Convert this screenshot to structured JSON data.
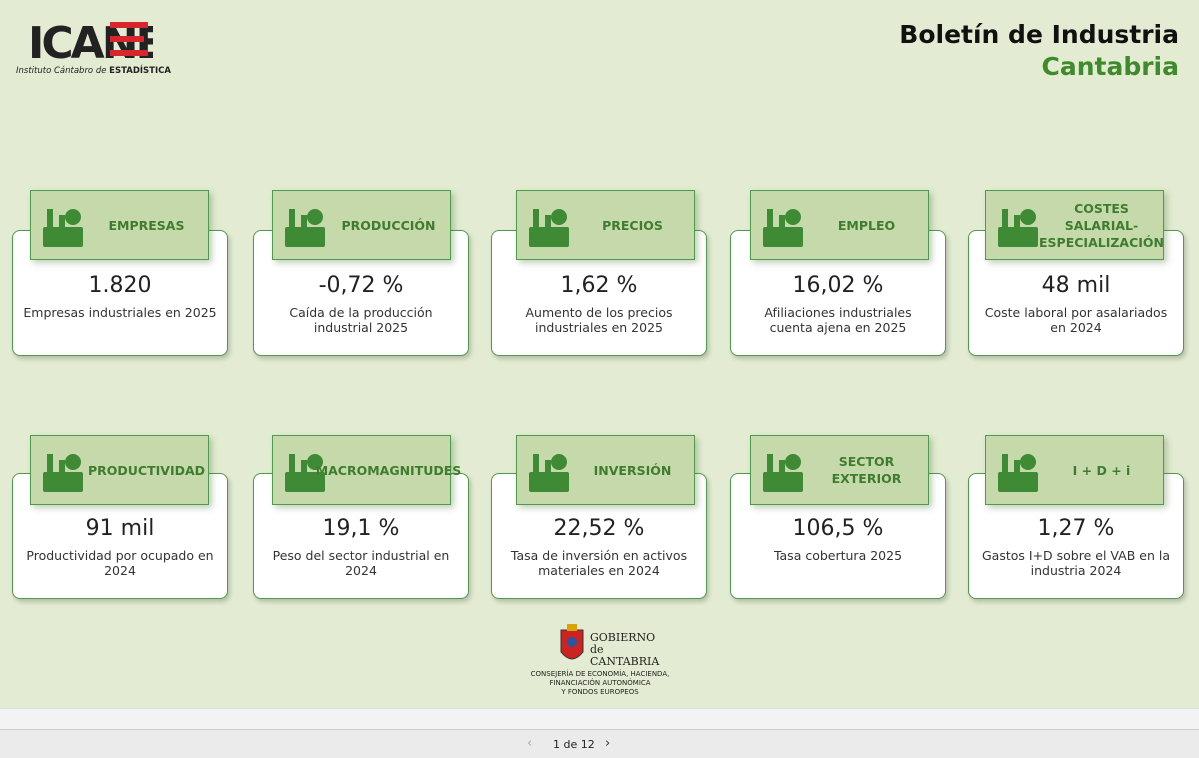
{
  "header": {
    "logo": "ICANE",
    "logo_caption": "Instituto Cántabro de",
    "logo_caption_bold": "ESTADÍSTICA",
    "title": "Boletín de Industria",
    "subtitle": "Cantabria"
  },
  "cards": [
    {
      "label": "EMPRESAS",
      "value": "1.820",
      "description": "Empresas industriales en 2025"
    },
    {
      "label": "PRODUCCIÓN",
      "value": "-0,72 %",
      "description": "Caída de la producción industrial 2025"
    },
    {
      "label": "PRECIOS",
      "value": "1,62 %",
      "description": "Aumento de los precios industriales en 2025"
    },
    {
      "label": "EMPLEO",
      "value": "16,02 %",
      "description": "Afiliaciones industriales cuenta ajena en 2025"
    },
    {
      "label": "COSTES SALARIAL-ESPECIALIZACIÓN",
      "value": "48 mil",
      "description": "Coste laboral por asalariados en 2024"
    },
    {
      "label": "PRODUCTIVIDAD",
      "value": "91 mil",
      "description": "Productividad por ocupado en 2024"
    },
    {
      "label": "MACROMAGNITUDES",
      "value": "19,1 %",
      "description": "Peso del sector industrial en 2024"
    },
    {
      "label": "INVERSIÓN",
      "value": "22,52 %",
      "description": "Tasa de inversión en activos materiales en 2024"
    },
    {
      "label": "SECTOR EXTERIOR",
      "value": "106,5 %",
      "description": "Tasa cobertura 2025"
    },
    {
      "label": "I + D + i",
      "value": "1,27 %",
      "description": "Gastos I+D sobre el VAB en la industria 2024"
    }
  ],
  "footer": {
    "gov_line1": "GOBIERNO",
    "gov_line2": "de",
    "gov_line3": "CANTABRIA",
    "dept_line1": "CONSEJERÍA DE ECONOMÍA, HACIENDA,",
    "dept_line2": "FINANCIACIÓN AUTONÓMICA",
    "dept_line3": "Y FONDOS EUROPEOS"
  },
  "pager": {
    "text": "1 de 12"
  }
}
